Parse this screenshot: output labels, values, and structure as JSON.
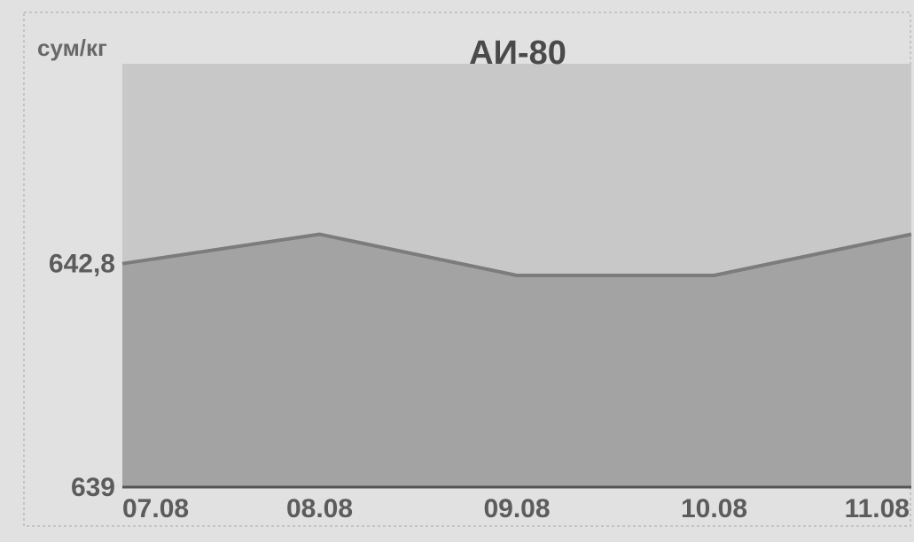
{
  "chart_data": {
    "type": "area",
    "title": "АИ-80",
    "ylabel": "сум/кг",
    "xlabel": "",
    "categories": [
      "07.08",
      "08.08",
      "09.08",
      "10.08",
      "11.08"
    ],
    "series": [
      {
        "values": [
          642.8,
          643.3,
          642.6,
          642.6,
          643.3
        ]
      }
    ],
    "ylim": [
      639,
      646.2
    ],
    "y_ticks": [
      "639",
      "642,8"
    ],
    "grid": false,
    "legend": "none",
    "colors": {
      "plot_background": "#c8c8c8",
      "area_fill": "#a3a3a3",
      "line": "#7c7c7c",
      "page_background": "#e1e1e1"
    }
  }
}
